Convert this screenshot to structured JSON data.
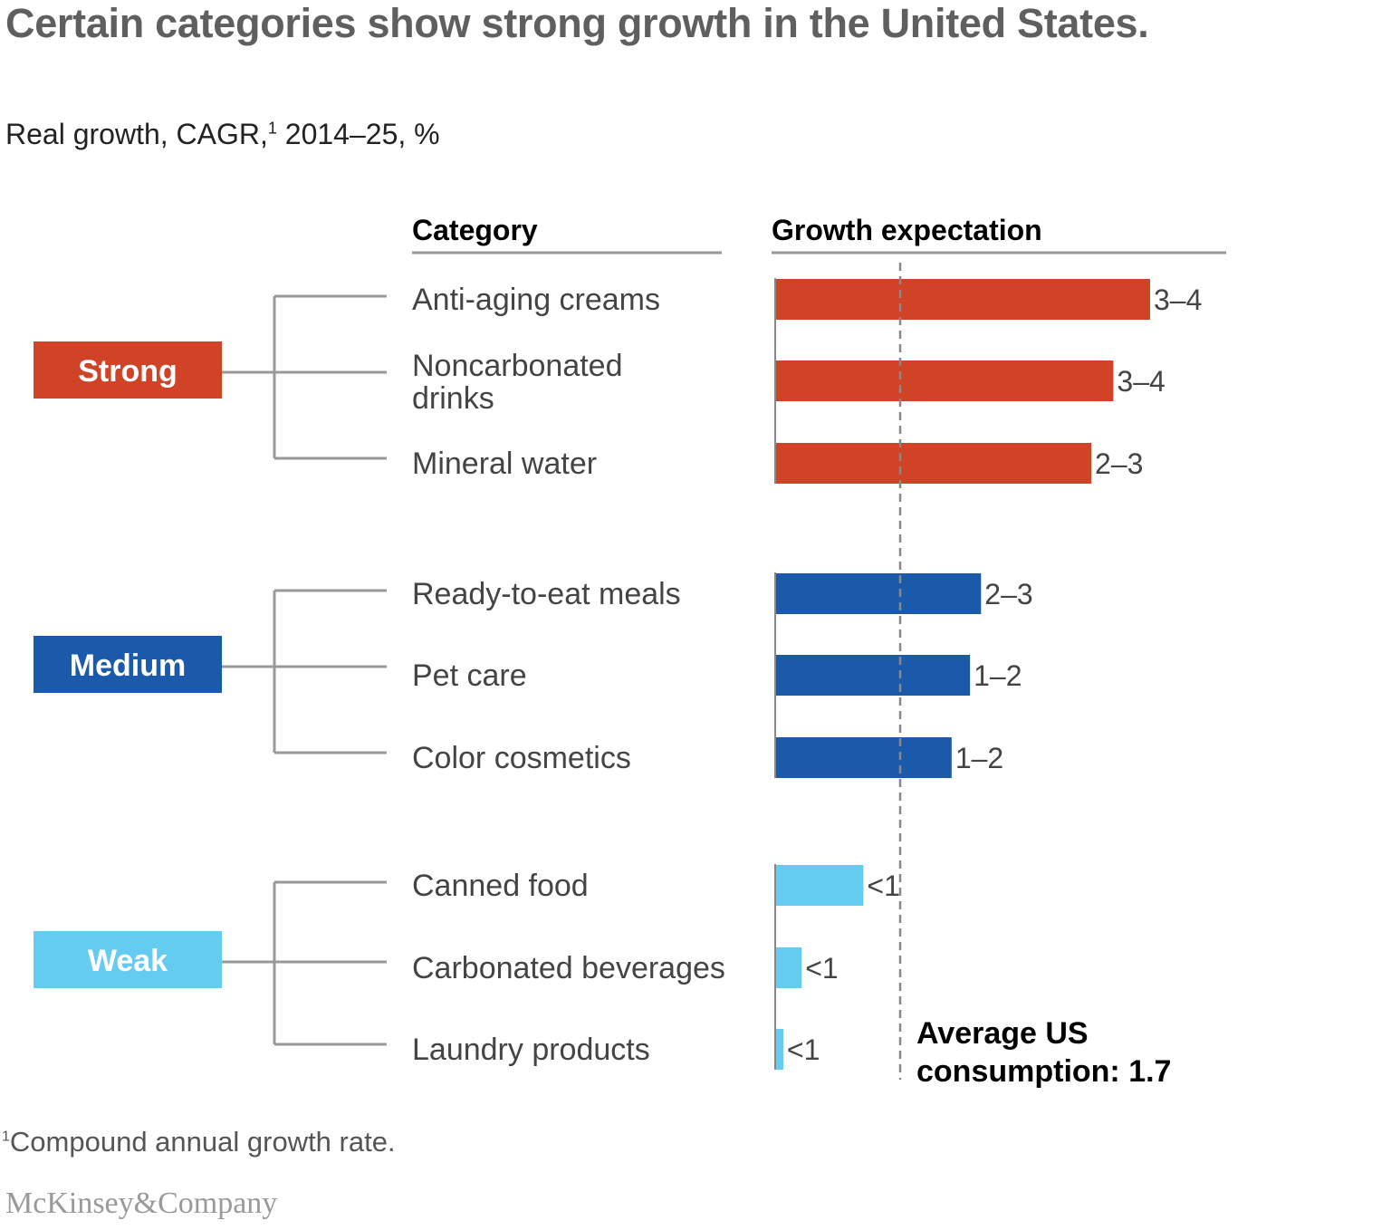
{
  "title": "Certain categories show strong growth in the United States.",
  "subtitle": {
    "text": "Real growth, CAGR,",
    "sup": "1",
    "rest": " 2014–25, %"
  },
  "footnote": {
    "sup": "1",
    "text": "Compound annual growth rate."
  },
  "logo": "McKinsey&Company",
  "colors": {
    "strong": "#D04327",
    "medium": "#1B5AAA",
    "weak": "#64CBF1",
    "text": "#555555",
    "line": "#999999"
  },
  "chart_data": {
    "type": "bar",
    "orientation": "horizontal",
    "column_headers": {
      "category": "Category",
      "growth": "Growth expectation"
    },
    "reference_line": {
      "value": 1.7,
      "label_line1": "Average US",
      "label_line2": "consumption: 1.7",
      "style": "dashed"
    },
    "groups": [
      {
        "name": "Strong",
        "color": "#D04327",
        "items": [
          {
            "category": [
              "Anti-aging creams"
            ],
            "label": "3–4",
            "value": 5.1
          },
          {
            "category": [
              "Noncarbonated",
              "drinks"
            ],
            "label": "3–4",
            "value": 4.6
          },
          {
            "category": [
              "Mineral water"
            ],
            "label": "2–3",
            "value": 4.3
          }
        ]
      },
      {
        "name": "Medium",
        "color": "#1B5AAA",
        "items": [
          {
            "category": [
              "Ready-to-eat meals"
            ],
            "label": "2–3",
            "value": 2.8
          },
          {
            "category": [
              "Pet care"
            ],
            "label": "1–2",
            "value": 2.65
          },
          {
            "category": [
              "Color cosmetics"
            ],
            "label": "1–2",
            "value": 2.4
          }
        ]
      },
      {
        "name": "Weak",
        "color": "#64CBF1",
        "items": [
          {
            "category": [
              "Canned food"
            ],
            "label": "<1",
            "value": 1.2
          },
          {
            "category": [
              "Carbonated beverages"
            ],
            "label": "<1",
            "value": 0.36
          },
          {
            "category": [
              "Laundry products"
            ],
            "label": "<1",
            "value": 0.11
          }
        ]
      }
    ]
  }
}
